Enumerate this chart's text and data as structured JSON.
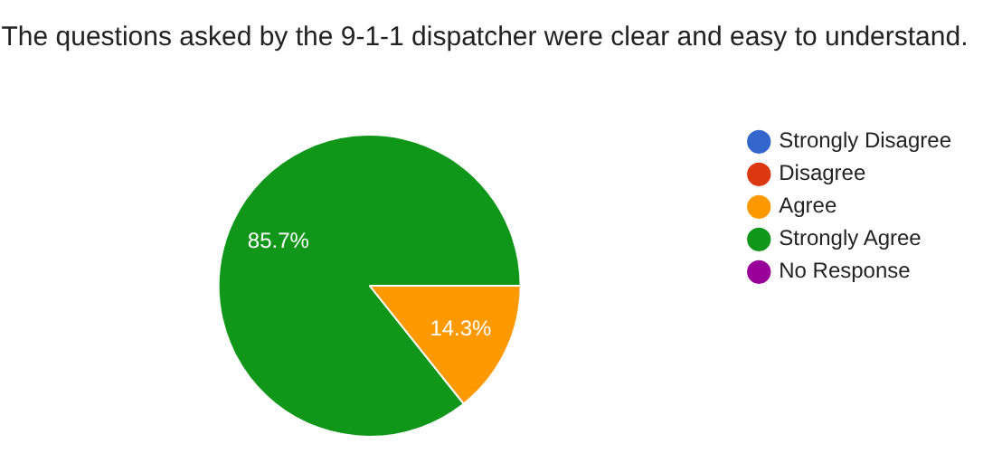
{
  "chart_data": {
    "type": "pie",
    "title": "The questions asked by the 9-1-1 dispatcher were clear and easy to understand.",
    "categories": [
      "Strongly Disagree",
      "Disagree",
      "Agree",
      "Strongly Agree",
      "No Response"
    ],
    "values": [
      0,
      0,
      14.3,
      85.7,
      0
    ],
    "colors": [
      "#3366cc",
      "#dc3912",
      "#ff9900",
      "#109618",
      "#990099"
    ],
    "value_labels": [
      null,
      null,
      "14.3%",
      "85.7%",
      null
    ],
    "legend": "right"
  }
}
